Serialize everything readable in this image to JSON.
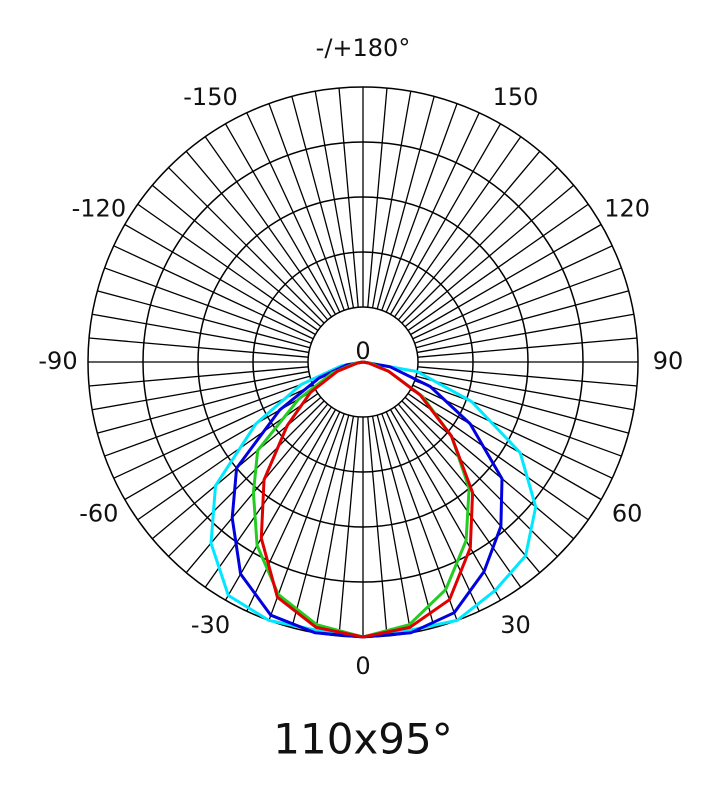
{
  "chart_data": {
    "type": "polar",
    "title": "110x95°",
    "center_label": "0",
    "theta": [
      -90,
      -80,
      -70,
      -60,
      -50,
      -40,
      -30,
      -20,
      -10,
      0,
      10,
      20,
      30,
      40,
      50,
      60,
      70,
      80,
      90
    ],
    "series": [
      {
        "color": "#00e8ff",
        "values": [
          0,
          8,
          24,
          45,
          70,
          86,
          98,
          100,
          99,
          100,
          99,
          100,
          96,
          92,
          82,
          66,
          42,
          20,
          0
        ]
      },
      {
        "color": "#0000e0",
        "values": [
          0,
          6,
          17,
          35,
          60,
          74,
          89,
          98,
          100,
          100,
          100,
          97,
          88,
          78,
          66,
          45,
          26,
          10,
          0
        ]
      },
      {
        "color": "#22cc22",
        "values": [
          0,
          3,
          12,
          27,
          50,
          62,
          77,
          90,
          97,
          100,
          97,
          88,
          75,
          60,
          42,
          25,
          10,
          3,
          0
        ]
      },
      {
        "color": "#e00000",
        "values": [
          0,
          2,
          10,
          22,
          36,
          56,
          74,
          91,
          98,
          100,
          98,
          92,
          78,
          62,
          42,
          24,
          10,
          2,
          0
        ]
      }
    ],
    "rlim": [
      0,
      100
    ],
    "rticks": [
      20,
      40,
      60,
      80,
      100
    ],
    "theta_grid_step": 5,
    "thetaticks": [
      {
        "value": 180,
        "label": "-/+180°"
      },
      -150,
      -120,
      -90,
      -60,
      -30,
      0,
      30,
      60,
      90,
      120,
      150
    ],
    "grid": true
  }
}
